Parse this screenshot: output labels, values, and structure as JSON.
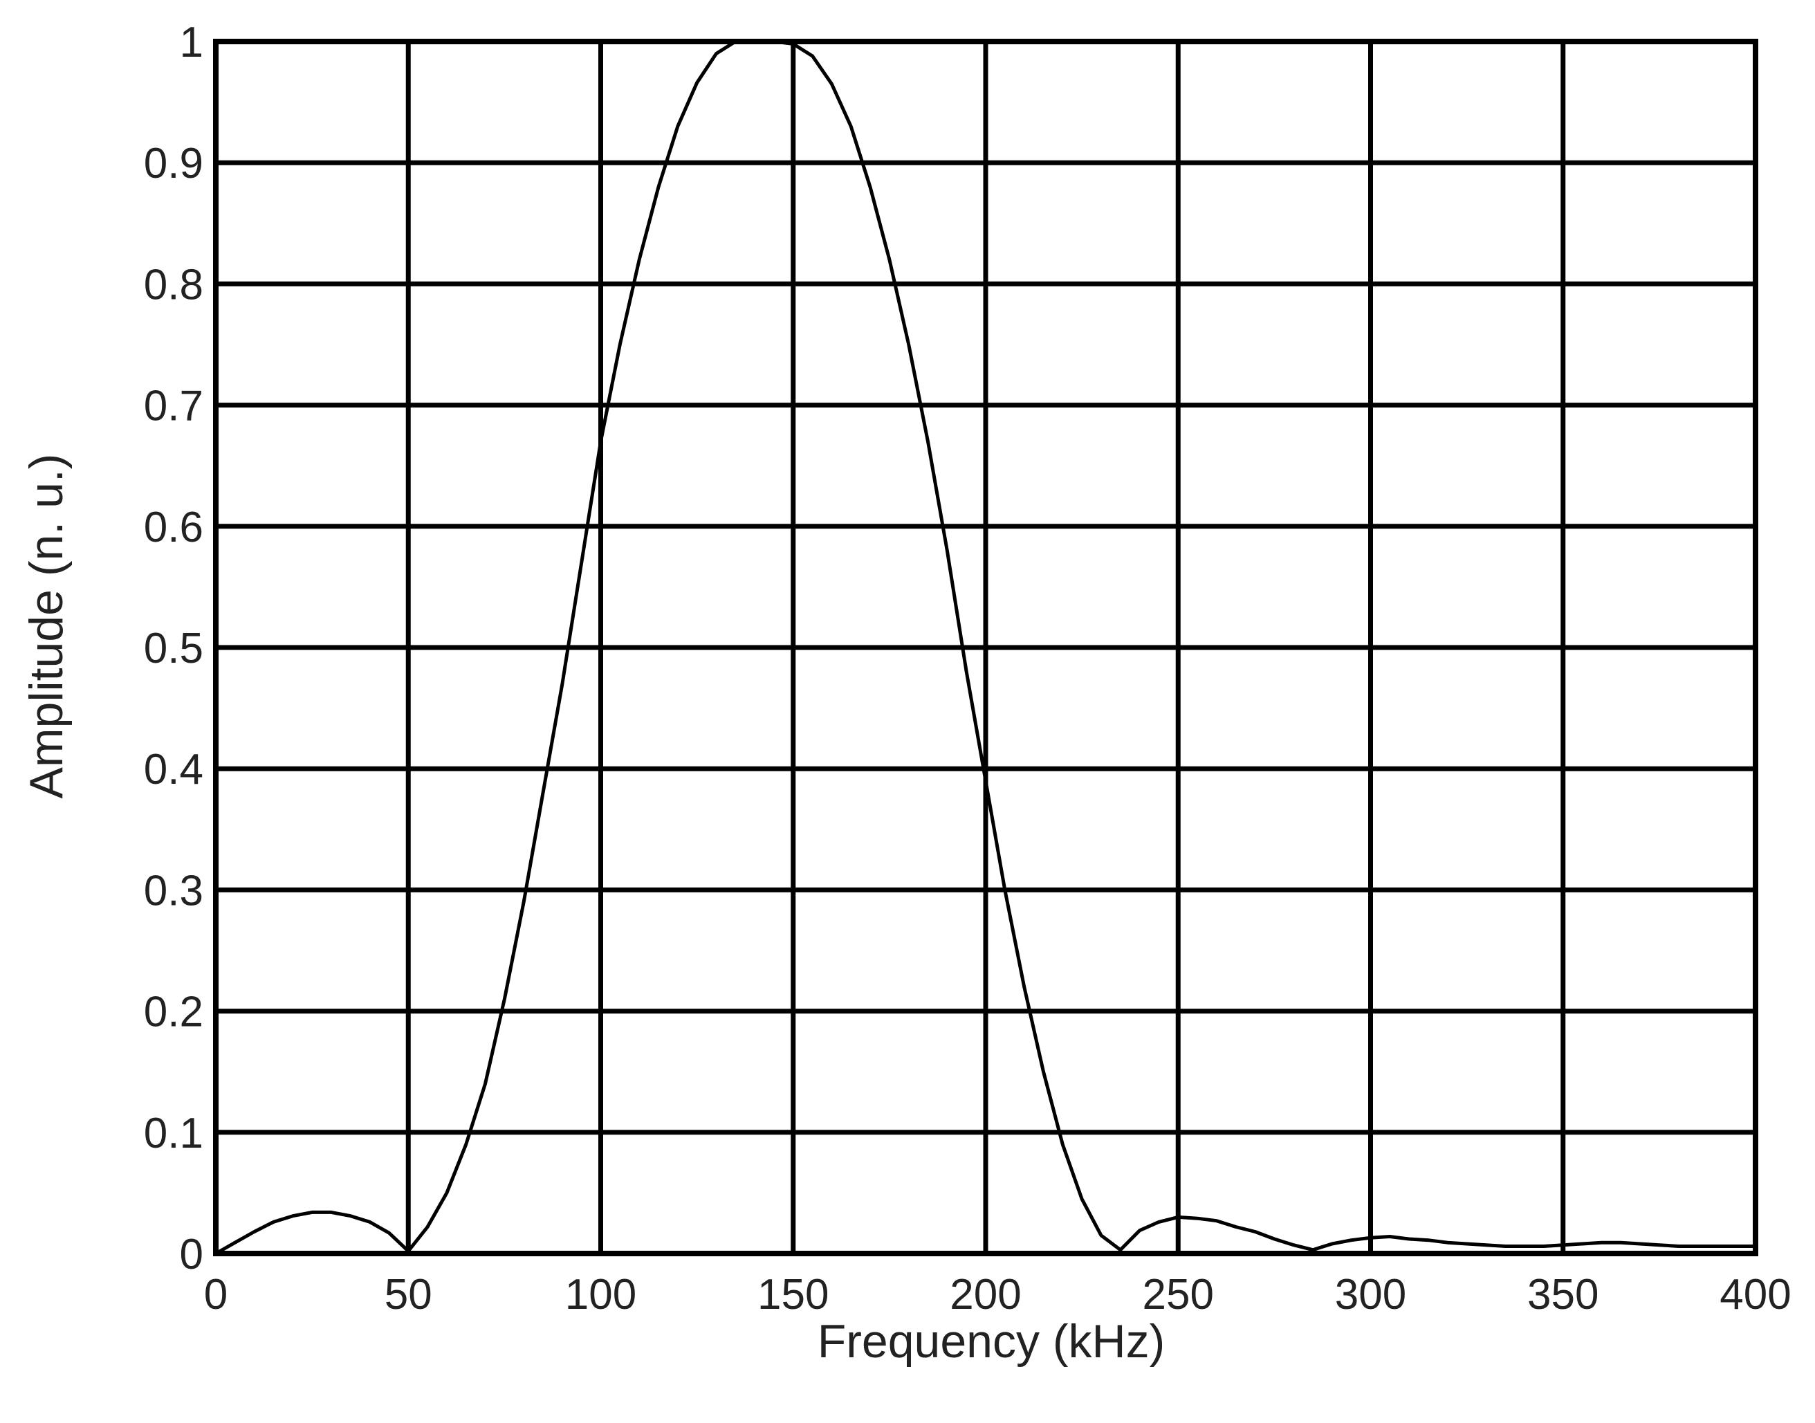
{
  "chart_data": {
    "type": "line",
    "title": "",
    "xlabel": "Frequency (kHz)",
    "ylabel": "Amplitude (n. u.)",
    "xlim": [
      0,
      400
    ],
    "ylim": [
      0,
      1
    ],
    "xticks": [
      "0",
      "50",
      "100",
      "150",
      "200",
      "250",
      "300",
      "350",
      "400"
    ],
    "yticks": [
      "0",
      "0.1",
      "0.2",
      "0.3",
      "0.4",
      "0.5",
      "0.6",
      "0.7",
      "0.8",
      "0.9",
      "1"
    ],
    "grid": true,
    "legend": "none",
    "line_color": "#000000",
    "series": [
      {
        "x": [
          0,
          5,
          10,
          15,
          20,
          25,
          30,
          35,
          40,
          45,
          50,
          55,
          60,
          65,
          70,
          75,
          80,
          85,
          90,
          95,
          100,
          105,
          110,
          115,
          120,
          125,
          130,
          135,
          140,
          145,
          150,
          155,
          160,
          165,
          170,
          175,
          180,
          185,
          190,
          195,
          200,
          205,
          210,
          215,
          220,
          225,
          230,
          235,
          240,
          245,
          250,
          255,
          260,
          265,
          270,
          275,
          280,
          285,
          290,
          295,
          300,
          305,
          310,
          315,
          320,
          325,
          330,
          335,
          340,
          345,
          350,
          355,
          360,
          365,
          370,
          375,
          380,
          385,
          390,
          395,
          400
        ],
        "values": [
          0.0,
          0.009,
          0.018,
          0.026,
          0.031,
          0.034,
          0.034,
          0.031,
          0.026,
          0.017,
          0.002,
          0.022,
          0.05,
          0.09,
          0.14,
          0.21,
          0.29,
          0.38,
          0.47,
          0.57,
          0.67,
          0.75,
          0.82,
          0.88,
          0.93,
          0.966,
          0.99,
          1.0,
          1.0,
          1.0,
          0.998,
          0.988,
          0.965,
          0.93,
          0.88,
          0.82,
          0.75,
          0.67,
          0.58,
          0.48,
          0.39,
          0.3,
          0.22,
          0.15,
          0.09,
          0.045,
          0.015,
          0.003,
          0.019,
          0.026,
          0.03,
          0.029,
          0.027,
          0.022,
          0.018,
          0.012,
          0.007,
          0.003,
          0.008,
          0.011,
          0.013,
          0.014,
          0.012,
          0.011,
          0.009,
          0.008,
          0.007,
          0.006,
          0.006,
          0.006,
          0.007,
          0.008,
          0.009,
          0.009,
          0.008,
          0.007,
          0.006,
          0.006,
          0.006,
          0.006,
          0.006
        ]
      }
    ]
  }
}
